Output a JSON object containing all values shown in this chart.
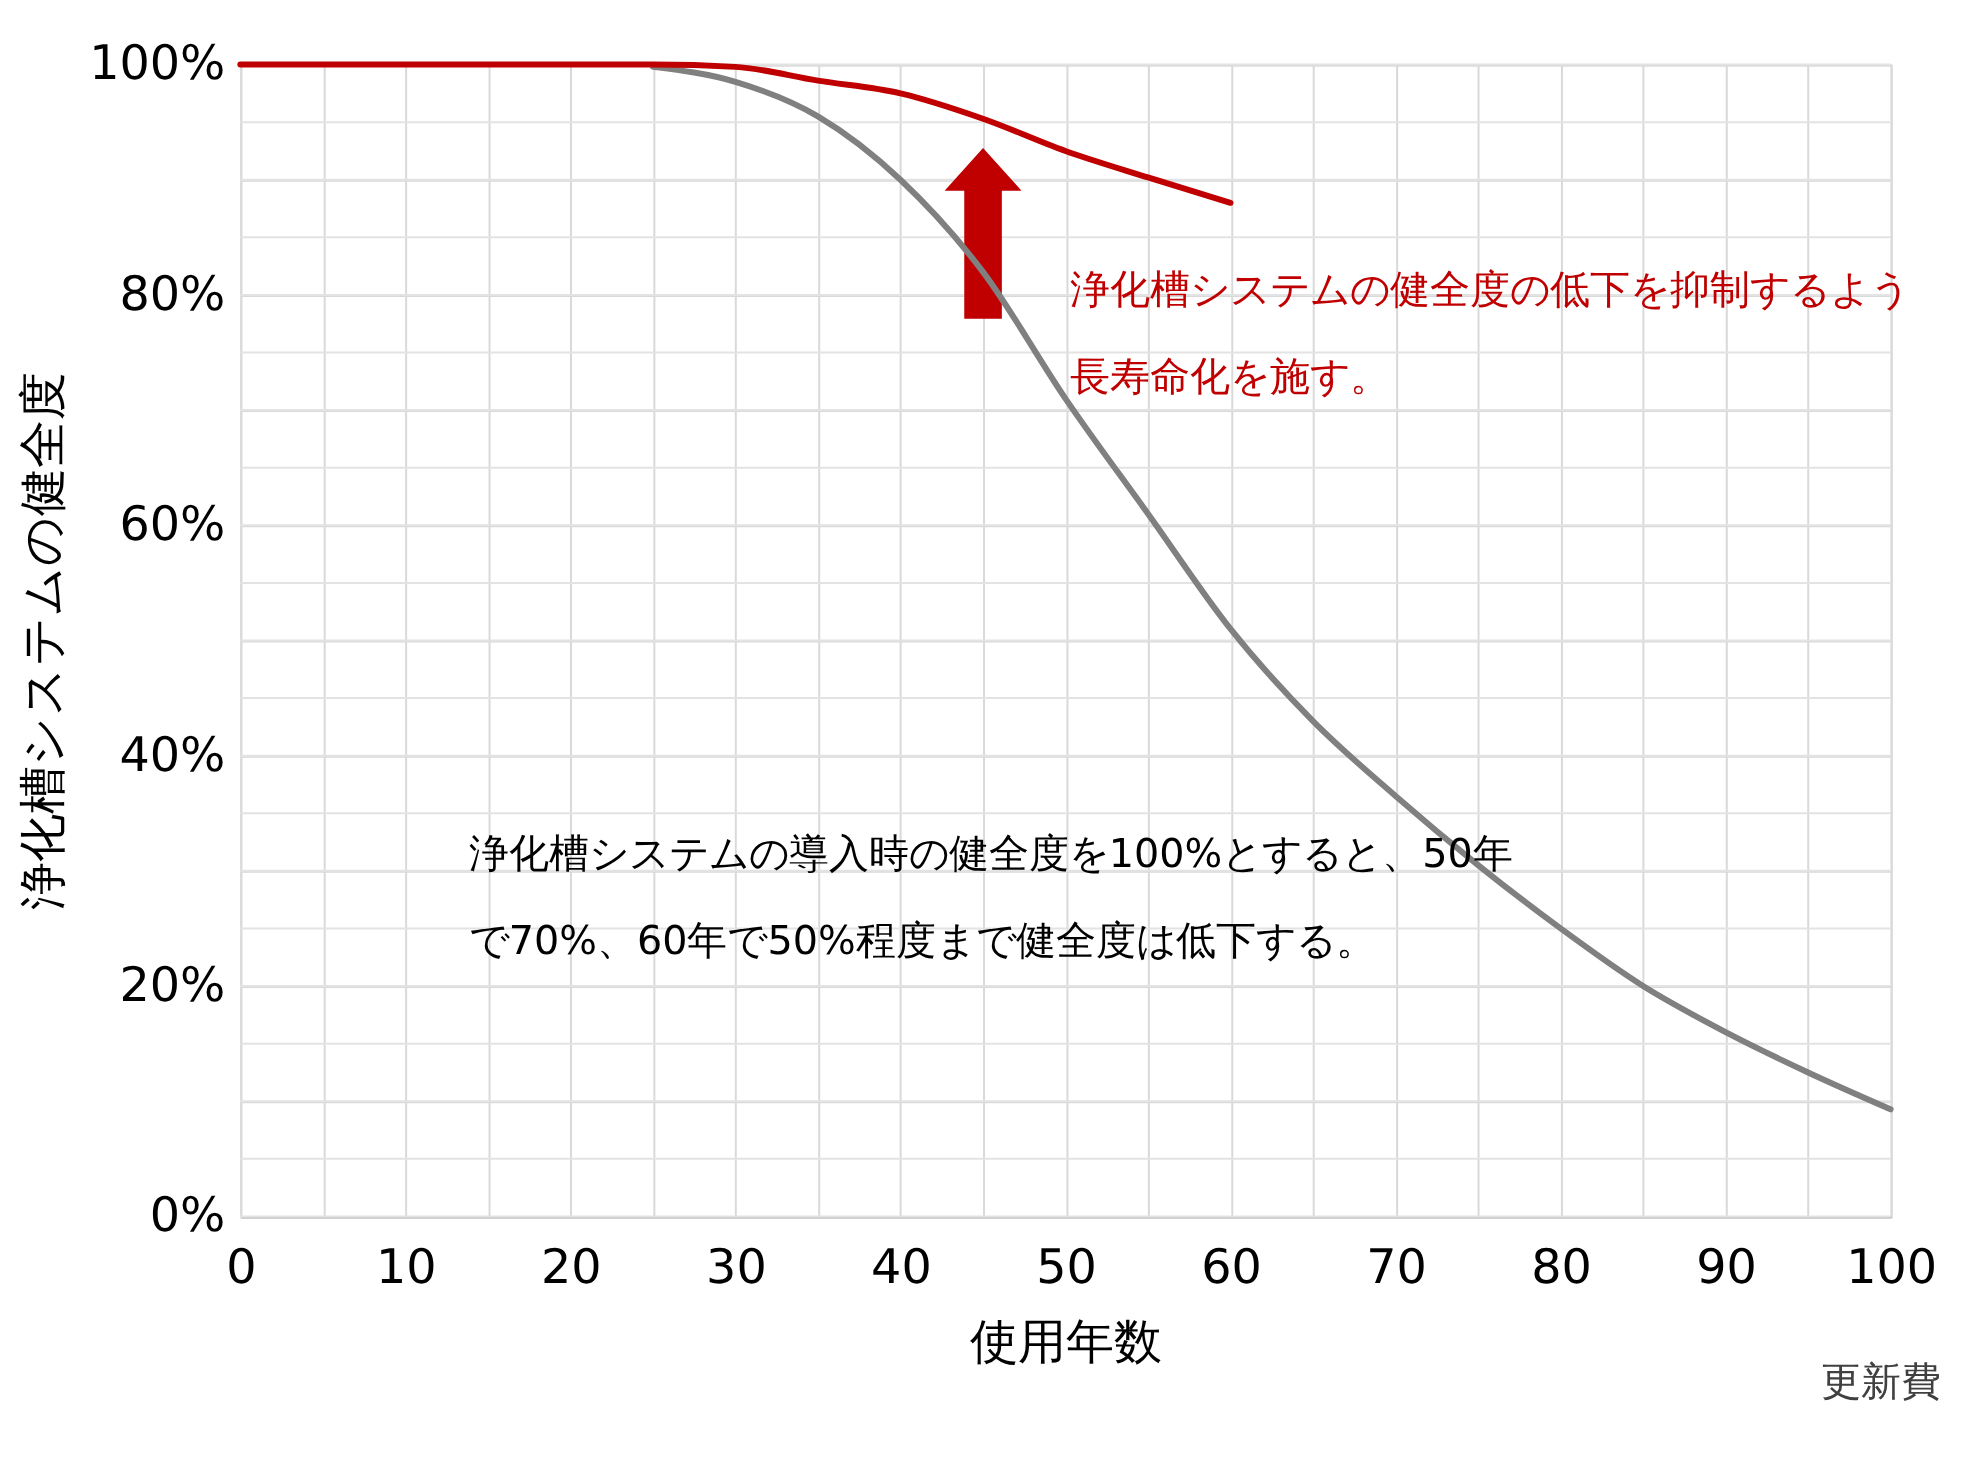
{
  "chart_data": {
    "type": "line",
    "xlabel": "使用年数",
    "ylabel": "浄化槽システムの健全度",
    "series": [
      {
        "color": "#808080",
        "x": [
          25,
          30,
          35,
          40,
          45,
          50,
          55,
          60,
          65,
          70,
          75,
          80,
          85,
          90,
          95,
          100
        ],
        "values": [
          99.8,
          98.5,
          95.5,
          90,
          82,
          71,
          61,
          51,
          43,
          36.5,
          30.5,
          25,
          20,
          16,
          12.5,
          9.3
        ]
      },
      {
        "color": "#c00000",
        "x": [
          0,
          10,
          20,
          25,
          30,
          35,
          40,
          45,
          50,
          55,
          60
        ],
        "values": [
          100,
          100,
          100,
          100,
          99.8,
          98.6,
          97.5,
          95.3,
          92.5,
          90.2,
          88
        ]
      }
    ],
    "xlim": [
      0,
      100
    ],
    "xticks": [
      0,
      {
        "value": 5,
        "label": null
      },
      10,
      {
        "value": 15,
        "label": null
      },
      20,
      {
        "value": 25,
        "label": null
      },
      30,
      {
        "value": 35,
        "label": null
      },
      40,
      {
        "value": 45,
        "label": null
      },
      50,
      {
        "value": 55,
        "label": null
      },
      60,
      {
        "value": 65,
        "label": null
      },
      70,
      {
        "value": 75,
        "label": null
      },
      80,
      {
        "value": 85,
        "label": null
      },
      90,
      {
        "value": 95,
        "label": null
      },
      100
    ],
    "ylim": [
      0,
      100
    ],
    "yticks": [
      {
        "value": 0,
        "label": "0%"
      },
      {
        "value": 5,
        "label": null
      },
      {
        "value": 10,
        "label": null
      },
      {
        "value": 15,
        "label": null
      },
      {
        "value": 20,
        "label": "20%"
      },
      {
        "value": 25,
        "label": null
      },
      {
        "value": 30,
        "label": null
      },
      {
        "value": 35,
        "label": null
      },
      {
        "value": 40,
        "label": "40%"
      },
      {
        "value": 45,
        "label": null
      },
      {
        "value": 50,
        "label": null
      },
      {
        "value": 55,
        "label": null
      },
      {
        "value": 60,
        "label": "60%"
      },
      {
        "value": 65,
        "label": null
      },
      {
        "value": 70,
        "label": null
      },
      {
        "value": 75,
        "label": null
      },
      {
        "value": 80,
        "label": "80%"
      },
      {
        "value": 85,
        "label": null
      },
      {
        "value": 90,
        "label": null
      },
      {
        "value": 95,
        "label": null
      },
      {
        "value": 100,
        "label": "100%"
      }
    ],
    "grid": true,
    "marker": "none",
    "line_style": "solid",
    "annotations": [
      "浄化槽システムの健全度の低下を抑制するよう長寿命化を施す。",
      "浄化槽システムの導入時の健全度を100%とすると、50年で70%、60年で50%程度まで健全度は低下する。",
      "更新費"
    ]
  }
}
